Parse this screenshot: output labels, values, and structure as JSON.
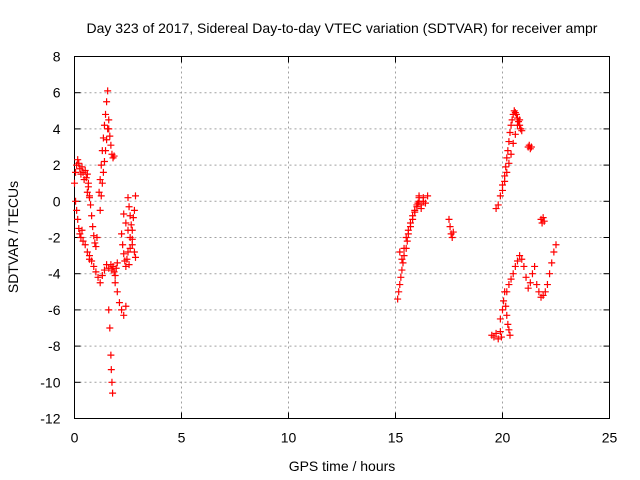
{
  "chart_data": {
    "type": "scatter",
    "title": "Day 323 of 2017, Sidereal Day-to-day VTEC variation (SDTVAR) for receiver ampr",
    "xlabel": "GPS time / hours",
    "ylabel": "SDTVAR / TECUs",
    "xlim": [
      0,
      25
    ],
    "ylim": [
      -12,
      8
    ],
    "xticks": [
      0,
      5,
      10,
      15,
      20,
      25
    ],
    "yticks": [
      -12,
      -10,
      -8,
      -6,
      -4,
      -2,
      0,
      2,
      4,
      6,
      8
    ],
    "grid": true,
    "legend": "none",
    "marker": "+",
    "color": "#ff0000",
    "series": [
      {
        "x": [
          0.0,
          0.05,
          0.1,
          0.15,
          0.2,
          0.25,
          0.3,
          0.35,
          0.4,
          0.45,
          0.5,
          0.55,
          0.6,
          0.65,
          0.7,
          0.05,
          0.1,
          0.15,
          0.2,
          0.25,
          0.3,
          0.35,
          0.4,
          0.5,
          0.6,
          0.7,
          0.6,
          0.65,
          0.7,
          0.75,
          0.8,
          0.85,
          0.9,
          0.95,
          1.0,
          1.05,
          0.7,
          0.8,
          0.9,
          1.0,
          1.1,
          1.2,
          1.3,
          1.4,
          1.5,
          1.6,
          1.15,
          1.2,
          1.25,
          1.3,
          1.35,
          1.4,
          1.45,
          1.5,
          1.55,
          1.2,
          1.25,
          1.3,
          1.35,
          1.4,
          1.45,
          1.5,
          1.55,
          1.6,
          1.6,
          1.65,
          1.7,
          1.75,
          1.8,
          1.85,
          1.7,
          1.75,
          1.8,
          1.85,
          1.9,
          1.95,
          2.0,
          1.6,
          1.65,
          1.7,
          1.72,
          1.75,
          1.78,
          1.9,
          2.0,
          2.1,
          2.2,
          2.3,
          2.4,
          2.2,
          2.25,
          2.3,
          2.35,
          2.4,
          2.45,
          2.5,
          2.55,
          2.6,
          2.7,
          2.3,
          2.4,
          2.5,
          2.6,
          2.7,
          2.8,
          2.85,
          2.5,
          2.55,
          2.6,
          2.65,
          2.7,
          2.75,
          2.8,
          2.85
        ],
        "y": [
          1.0,
          1.6,
          2.0,
          2.3,
          2.1,
          1.8,
          1.5,
          1.9,
          1.6,
          1.2,
          1.7,
          1.3,
          1.5,
          0.8,
          0.3,
          0.0,
          -0.5,
          -1.0,
          -1.5,
          -1.8,
          -2.0,
          -1.6,
          -2.2,
          -2.4,
          -2.8,
          -3.2,
          0.5,
          1.0,
          0.2,
          -0.2,
          -0.8,
          -1.4,
          -1.9,
          -2.3,
          -2.5,
          -2.0,
          -3.0,
          -3.3,
          -3.6,
          -3.9,
          -4.2,
          -4.5,
          -4.1,
          -3.8,
          -3.5,
          -3.7,
          0.5,
          1.2,
          2.0,
          2.8,
          3.5,
          4.2,
          4.8,
          5.5,
          6.1,
          -0.5,
          0.3,
          1.0,
          1.6,
          2.2,
          2.8,
          3.4,
          4.0,
          4.5,
          4.0,
          3.6,
          3.1,
          2.6,
          2.4,
          2.5,
          -3.5,
          -3.8,
          -3.6,
          -3.9,
          -4.1,
          -3.7,
          -3.4,
          -6.0,
          -7.0,
          -8.5,
          -9.3,
          -10.0,
          -10.6,
          -4.5,
          -5.0,
          -5.6,
          -6.0,
          -6.3,
          -5.8,
          -1.8,
          -2.4,
          -2.9,
          -3.3,
          -3.6,
          -3.2,
          -2.8,
          -3.5,
          -2.6,
          -2.1,
          -0.7,
          -1.2,
          -1.6,
          -2.0,
          -2.4,
          -2.8,
          -3.1,
          0.2,
          -0.3,
          -0.8,
          -1.3,
          -1.6,
          -0.9,
          -0.5,
          0.3
        ]
      },
      {
        "x": [
          15.1,
          15.15,
          15.2,
          15.25,
          15.3,
          15.35,
          15.4,
          15.5,
          15.55,
          15.6,
          15.7,
          15.8,
          15.9,
          16.0,
          16.05,
          16.1,
          16.2,
          16.3,
          15.2,
          15.3,
          15.4,
          15.5,
          15.6,
          15.7,
          15.8,
          15.9,
          16.0,
          16.1,
          16.1,
          16.2,
          16.3,
          16.4,
          16.5,
          17.5,
          17.55,
          17.6,
          17.65,
          17.7
        ],
        "y": [
          -5.4,
          -5.0,
          -4.6,
          -4.2,
          -3.8,
          -3.4,
          -3.0,
          -2.6,
          -2.2,
          -1.8,
          -1.4,
          -1.0,
          -0.6,
          -0.3,
          -0.1,
          0.0,
          -0.2,
          0.0,
          -2.8,
          -3.2,
          -2.6,
          -2.0,
          -1.6,
          -1.2,
          -0.8,
          -0.5,
          -0.2,
          0.2,
          0.3,
          -0.4,
          0.2,
          -0.1,
          0.3,
          -1.0,
          -1.4,
          -1.8,
          -2.0,
          -1.7
        ]
      },
      {
        "x": [
          19.7,
          19.8,
          19.9,
          20.0,
          20.1,
          20.15,
          20.2,
          20.25,
          20.3,
          20.35,
          20.4,
          20.45,
          20.5,
          20.55,
          20.6,
          20.65,
          20.7,
          20.75,
          20.8,
          20.85,
          20.9,
          20.0,
          20.1,
          20.2,
          20.3,
          20.4,
          20.5,
          20.6,
          20.7,
          20.8,
          21.2,
          21.25,
          21.3,
          21.35,
          21.8,
          21.85,
          21.9,
          21.95
        ],
        "y": [
          -0.4,
          -0.2,
          0.3,
          0.9,
          1.4,
          1.9,
          2.4,
          2.8,
          3.3,
          3.8,
          4.2,
          4.5,
          4.8,
          5.0,
          4.9,
          4.8,
          4.6,
          4.4,
          4.2,
          4.0,
          3.9,
          0.6,
          1.1,
          1.6,
          2.1,
          2.6,
          3.2,
          3.7,
          4.2,
          4.5,
          3.0,
          3.1,
          2.9,
          3.0,
          -1.0,
          -1.2,
          -0.9,
          -1.1
        ]
      },
      {
        "x": [
          19.5,
          19.6,
          19.7,
          19.8,
          19.9,
          19.95,
          19.9,
          20.0,
          20.05,
          20.1,
          20.15,
          20.2,
          20.25,
          20.3,
          20.35,
          20.2,
          20.3,
          20.4,
          20.5,
          20.6,
          20.7,
          20.8,
          20.9,
          21.0,
          21.1,
          21.2,
          21.3,
          21.4,
          21.5,
          21.6,
          21.7,
          21.8,
          21.9,
          22.0,
          22.1,
          22.2,
          22.3,
          22.4,
          22.5
        ],
        "y": [
          -7.4,
          -7.5,
          -7.3,
          -7.6,
          -7.2,
          -7.5,
          -6.5,
          -6.0,
          -5.5,
          -5.0,
          -5.8,
          -6.3,
          -6.8,
          -7.1,
          -7.4,
          -5.0,
          -4.6,
          -4.3,
          -4.0,
          -3.6,
          -3.3,
          -3.0,
          -3.2,
          -3.6,
          -4.2,
          -4.8,
          -4.5,
          -4.0,
          -3.6,
          -4.6,
          -5.0,
          -5.3,
          -5.2,
          -5.0,
          -4.6,
          -4.0,
          -3.4,
          -2.8,
          -2.4
        ]
      }
    ]
  }
}
